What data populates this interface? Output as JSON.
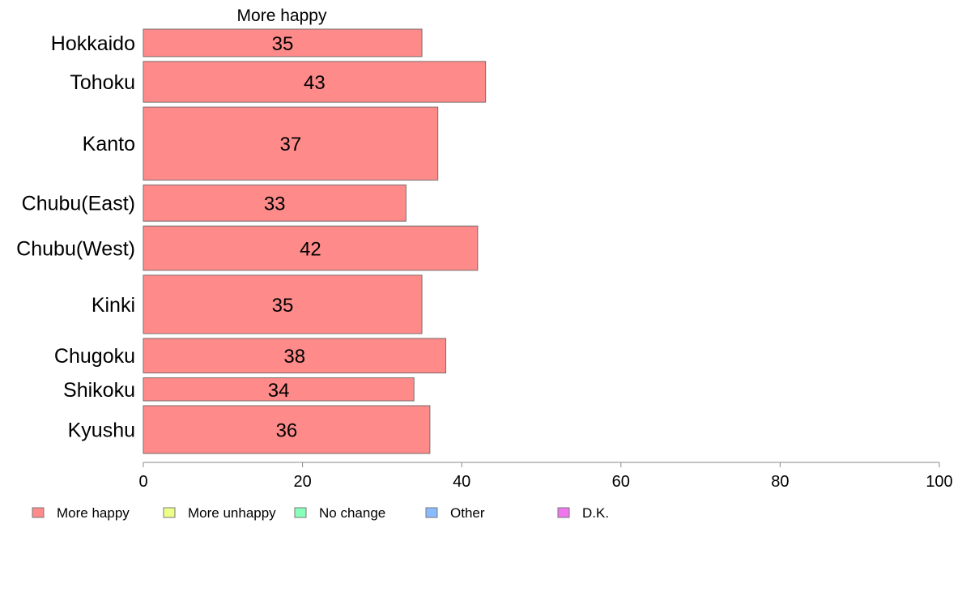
{
  "chart_data": {
    "type": "bar",
    "orientation": "horizontal",
    "stacked": true,
    "series_title": "More happy",
    "categories": [
      "Hokkaido",
      "Tohoku",
      "Kanto",
      "Chubu(East)",
      "Chubu(West)",
      "Kinki",
      "Chugoku",
      "Shikoku",
      "Kyushu"
    ],
    "category_weights": [
      0.62,
      0.92,
      1.65,
      0.82,
      1.0,
      1.32,
      0.78,
      0.52,
      1.08
    ],
    "series": [
      {
        "name": "More happy",
        "values": [
          35,
          43,
          37,
          33,
          42,
          35,
          38,
          34,
          36
        ],
        "color": "#ff8a8a"
      }
    ],
    "data_labels": [
      "35",
      "43",
      "37",
      "33",
      "42",
      "35",
      "38",
      "34",
      "36"
    ],
    "xlim": [
      0,
      100
    ],
    "xticks": [
      0,
      20,
      40,
      60,
      80,
      100
    ],
    "xtick_labels": [
      "0",
      "20",
      "40",
      "60",
      "80",
      "100"
    ],
    "grid": false,
    "legend_position": "bottom",
    "legend": [
      {
        "label": "More happy",
        "color": "#ff8a8a"
      },
      {
        "label": "More unhappy",
        "color": "#eeff88"
      },
      {
        "label": "No change",
        "color": "#88ffbb"
      },
      {
        "label": "Other",
        "color": "#88bbff"
      },
      {
        "label": "D.K.",
        "color": "#ee77ee"
      }
    ]
  }
}
